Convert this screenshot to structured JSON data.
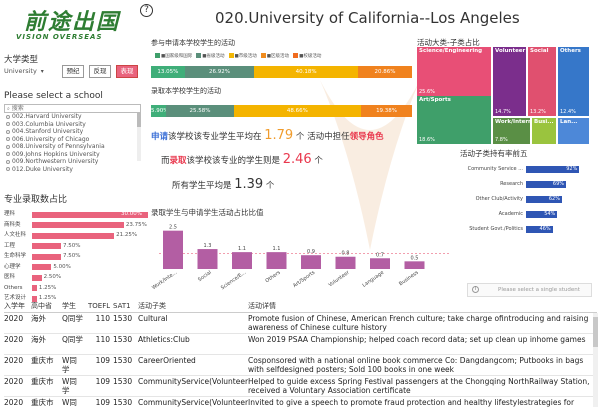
{
  "logo": {
    "text_cn": "前途出国",
    "text_en": "VISION OVERSEAS"
  },
  "page_title": "020.University of California--Los Angeles",
  "filters": {
    "type_label": "大学类型",
    "univ_select": "University",
    "buttons": [
      {
        "label": "预纪",
        "active": false
      },
      {
        "label": "反现",
        "active": false
      },
      {
        "label": "表现",
        "active": true
      }
    ]
  },
  "school_panel": {
    "label": "Please select a school",
    "search_placeholder": "搜索",
    "items": [
      "002.Harvard University",
      "003.Columbia University",
      "004.Stanford University",
      "006.University of Chicago",
      "008.University of Pennsylvania",
      "009.Johns Hopkins University",
      "009.Northwestern University",
      "012.Duke University"
    ]
  },
  "major_chart": {
    "label": "专业录取数占比",
    "rows": [
      {
        "name": "理科",
        "pct_label": "30.00%",
        "value": 30.0
      },
      {
        "name": "商科类",
        "pct_label": "23.75%",
        "value": 23.75
      },
      {
        "name": "人文社科",
        "pct_label": "21.25%",
        "value": 21.25
      },
      {
        "name": "工程",
        "pct_label": "7.50%",
        "value": 7.5
      },
      {
        "name": "生命科学",
        "pct_label": "7.50%",
        "value": 7.5
      },
      {
        "name": "心理学",
        "pct_label": "5.00%",
        "value": 5.0
      },
      {
        "name": "医科",
        "pct_label": "2.50%",
        "value": 2.5
      },
      {
        "name": "Others",
        "pct_label": "1.25%",
        "value": 1.25
      },
      {
        "name": "艺术设计",
        "pct_label": "1.25%",
        "value": 1.25
      }
    ]
  },
  "applicant_section": {
    "title": "参与申请本学校学生的活动",
    "legend": [
      {
        "label": "■国家级和国际",
        "color": "#3f9f6a"
      },
      {
        "label": "■省级活动",
        "color": "#5a8f7a"
      },
      {
        "label": "■市级活动",
        "color": "#f2b705"
      },
      {
        "label": "■区级活动",
        "color": "#f08c1e"
      },
      {
        "label": "■校级活动",
        "color": "#f06b1e"
      }
    ],
    "segments": [
      {
        "label": "13.05%",
        "value": 13.05,
        "color": "#3fae79"
      },
      {
        "label": "26.92%",
        "value": 26.92,
        "color": "#5b8f7b"
      },
      {
        "label": "40.18%",
        "value": 40.18,
        "color": "#f4b400"
      },
      {
        "label": "20.86%",
        "value": 20.86,
        "color": "#f0821e"
      }
    ]
  },
  "admitted_section": {
    "title": "录取本学校学生的活动",
    "segments": [
      {
        "label": "5.90%",
        "value": 5.9,
        "color": "#3fae79"
      },
      {
        "label": "25.58%",
        "value": 25.58,
        "color": "#5b8f7b"
      },
      {
        "label": "48.66%",
        "value": 48.66,
        "color": "#f4b400"
      },
      {
        "label": "19.38%",
        "value": 19.38,
        "color": "#f0821e"
      }
    ]
  },
  "stats": {
    "line1_a": "申请",
    "line1_b": "该学校该专业学生平均在",
    "line1_val": "1.79",
    "line1_c": "个 活动中担任",
    "line1_d": "领导角色",
    "line2_a": "而",
    "line2_b": "录取",
    "line2_c": "该学校该专业的学生则是",
    "line2_val": "2.46",
    "line2_d": "个",
    "line3_a": "所有学生平均是",
    "line3_val": "1.39",
    "line3_b": "个"
  },
  "ratio_chart": {
    "title": "录取学生与申请学生活动占比比值",
    "categories": [
      "Work/Inte...",
      "Social",
      "Science/E...",
      "Others",
      "Art/Sports",
      "Volunteer",
      "Language",
      "Business"
    ],
    "values": [
      2.5,
      1.3,
      1.1,
      1.1,
      0.9,
      0.8,
      0.7,
      0.5
    ],
    "value_labels": [
      "2.5",
      "1.3",
      "1.1",
      "1.1",
      "0.9",
      "0.8",
      "0.7",
      "0.5"
    ],
    "ylim": [
      0,
      3
    ],
    "reference_line": 1
  },
  "treemap": {
    "title": "活动大类-子类占比",
    "cells": [
      {
        "name": "Science/Engineering",
        "pct": "25.6%",
        "color": "#e84f76"
      },
      {
        "name": "Art/Sports",
        "pct": "18.6%",
        "color": "#3f9f6a"
      },
      {
        "name": "Volunteer",
        "pct": "14.7%",
        "color": "#7b2e8c"
      },
      {
        "name": "Social",
        "pct": "13.2%",
        "color": "#e0506f"
      },
      {
        "name": "Others",
        "pct": "12.4%",
        "color": "#3677c9"
      },
      {
        "name": "Work/Intern...",
        "pct": "7.8%",
        "color": "#5a8f45"
      },
      {
        "name": "Busi...",
        "pct": "",
        "color": "#9ac43e"
      },
      {
        "name": "Lan...",
        "pct": "",
        "color": "#4d88d8"
      }
    ]
  },
  "activity_chart": {
    "title": "活动子类持有率前五",
    "rows": [
      {
        "name": "Community Service ...",
        "label": "92%",
        "value": 92
      },
      {
        "name": "Research",
        "label": "69%",
        "value": 69
      },
      {
        "name": "Other Club/Activity",
        "label": "62%",
        "value": 62
      },
      {
        "name": "Academic",
        "label": "54%",
        "value": 54
      },
      {
        "name": "Student Govt./Politics",
        "label": "46%",
        "value": 46
      }
    ]
  },
  "select_hint": "Please select a single student",
  "table": {
    "headers": [
      "入学年",
      "高中省",
      "学生",
      "TOEFL",
      "SAT1",
      "活动子类",
      "活动详情"
    ],
    "rows": [
      {
        "year": "2020",
        "loc": "海外",
        "stu": "Q同学",
        "toefl": "110",
        "sat": "1530",
        "act": "Cultural",
        "det": "Promote fusion of Chinese, American French culture; take charge ofintroducing and raising awareness of Chinese culture history"
      },
      {
        "year": "2020",
        "loc": "海外",
        "stu": "Q同学",
        "toefl": "110",
        "sat": "1530",
        "act": "Athletics:Club",
        "det": "Won 2019 PSAA Championship; helped coach record data; set up clean up inhome games"
      },
      {
        "year": "2020",
        "loc": "重庆市",
        "stu": "W同学",
        "toefl": "109",
        "sat": "1530",
        "act": "CareerOriented",
        "det": "Cosponsored with a national online book commerce Co: Dangdangcom; Putbooks in bags with selfdesigned posters; Sold 100 books in one week"
      },
      {
        "year": "2020",
        "loc": "重庆市",
        "stu": "W同学",
        "toefl": "109",
        "sat": "1530",
        "act": "CommunityService(Volunteer)",
        "det": "Helped to guide excess Spring Festival passengers at the Chongqing NorthRailway Station, received a Voluntary Association certificate"
      },
      {
        "year": "2020",
        "loc": "重庆市",
        "stu": "W同学",
        "toefl": "109",
        "sat": "1530",
        "act": "CommunityService(Volunteer)",
        "det": "Invited to give a speech to promote fraud protection and healthy lifestylestrategies for elderly"
      }
    ]
  }
}
